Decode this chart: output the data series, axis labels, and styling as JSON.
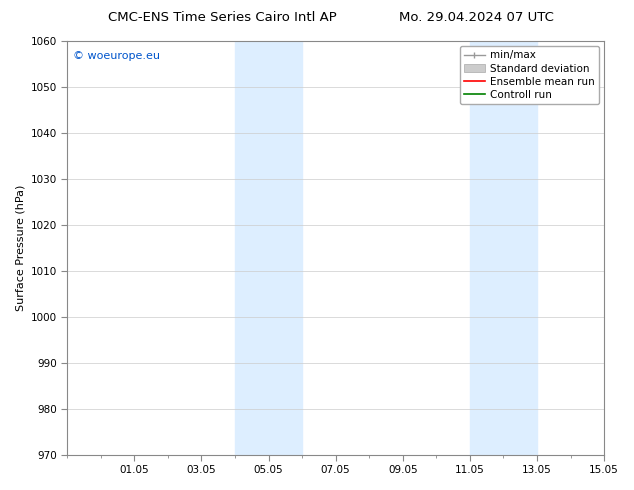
{
  "title_left": "CMC-ENS Time Series Cairo Intl AP",
  "title_right": "Mo. 29.04.2024 07 UTC",
  "ylabel": "Surface Pressure (hPa)",
  "ylim": [
    970,
    1060
  ],
  "yticks": [
    970,
    980,
    990,
    1000,
    1010,
    1020,
    1030,
    1040,
    1050,
    1060
  ],
  "xlim": [
    0,
    16
  ],
  "xtick_labels": [
    "01.05",
    "03.05",
    "05.05",
    "07.05",
    "09.05",
    "11.05",
    "13.05",
    "15.05"
  ],
  "xtick_positions": [
    2,
    4,
    6,
    8,
    10,
    12,
    14,
    16
  ],
  "shaded_bands": [
    {
      "x_start": 5,
      "x_end": 7
    },
    {
      "x_start": 12,
      "x_end": 14
    }
  ],
  "shaded_color": "#ddeeff",
  "watermark_text": "© woeurope.eu",
  "watermark_color": "#0055cc",
  "background_color": "#ffffff",
  "grid_color": "#cccccc",
  "title_fontsize": 9.5,
  "tick_fontsize": 7.5,
  "legend_fontsize": 7.5,
  "ylabel_fontsize": 8
}
